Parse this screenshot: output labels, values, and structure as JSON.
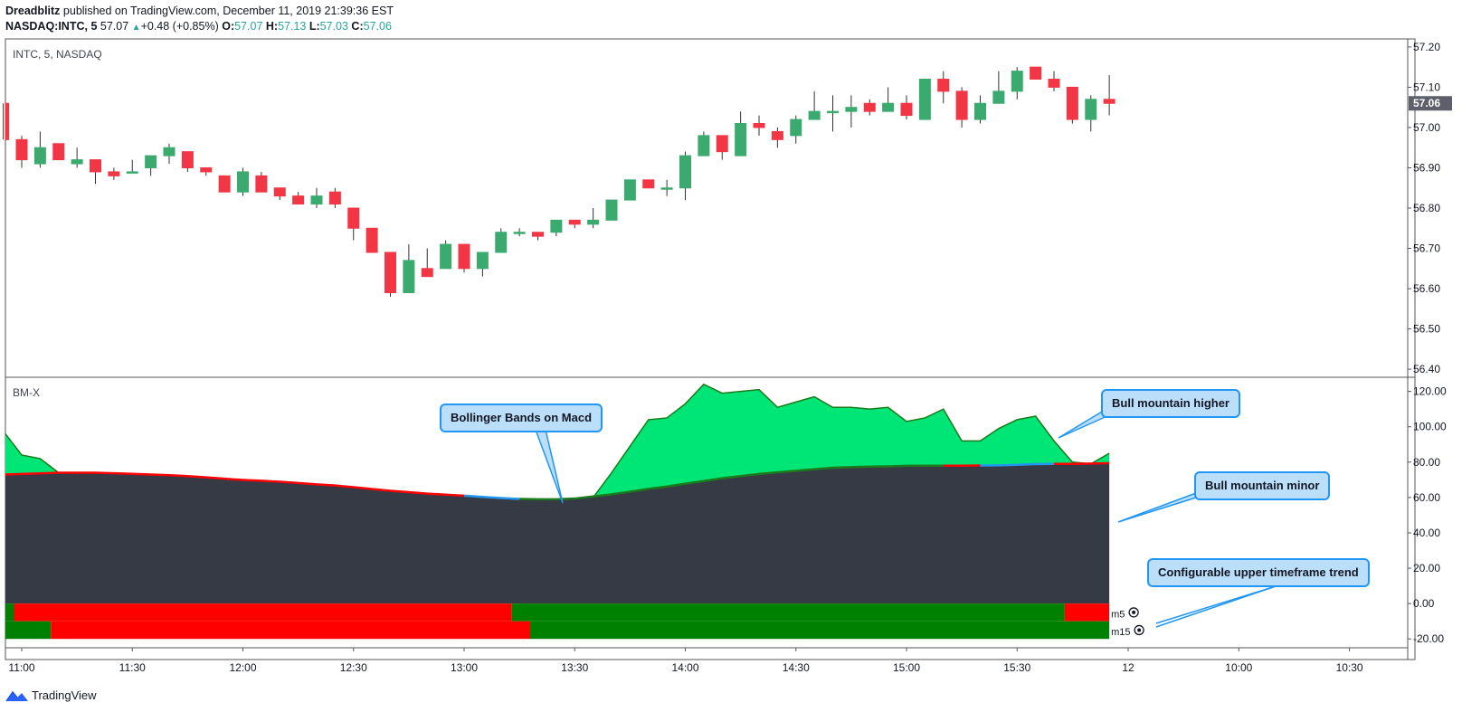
{
  "header": {
    "author": "Dreadblitz",
    "published": "published on TradingView.com, December 11, 2019 21:39:36 EST",
    "symbol": "NASDAQ:INTC, 5",
    "last": "57.07",
    "change_arrow": "▲",
    "change": "+0.48 (+0.85%)",
    "o_label": "O:",
    "o": "57.07",
    "h_label": "H:",
    "h": "57.13",
    "l_label": "L:",
    "l": "57.03",
    "c_label": "C:",
    "c": "57.06"
  },
  "panes": {
    "price_label": "INTC, 5, NASDAQ",
    "indicator_label": "BM-X",
    "current_price": "57.06"
  },
  "callouts": {
    "bollinger": "Bollinger Bands on Macd",
    "higher": "Bull mountain higher",
    "minor": "Bull mountain minor",
    "timeframe": "Configurable upper timeframe trend"
  },
  "row_labels": {
    "m5": "m5",
    "m15": "m15"
  },
  "footer": {
    "brand": "TradingView",
    "logo_icon": "tradingview-logo-icon"
  },
  "colors": {
    "up": "#3aaa6f",
    "down": "#f23645",
    "wick": "#333333",
    "mountain_fill": "#00e676",
    "mountain_line": "#1b7a1b",
    "base_fill": "#363a45",
    "signal_red": "#ff0000",
    "signal_blue": "#2196f3",
    "trend_green": "#008000",
    "trend_red": "#ff0000",
    "callout_bg": "#bbdefb",
    "callout_border": "#2196f3"
  },
  "chart_data": [
    {
      "type": "candlestick",
      "title": "INTC, 5, NASDAQ",
      "ylim": [
        56.38,
        57.22
      ],
      "y_ticks": [
        "57.20",
        "57.10",
        "57.00",
        "56.90",
        "56.80",
        "56.70",
        "56.60",
        "56.50",
        "56.40"
      ],
      "x_ticks": [
        "11:00",
        "11:30",
        "12:00",
        "12:30",
        "13:00",
        "13:30",
        "14:00",
        "14:30",
        "15:00",
        "15:30",
        "12",
        "10:00",
        "10:30"
      ],
      "time_start": "10:55",
      "bar_minutes": 5,
      "ohlc": [
        [
          57.06,
          57.06,
          56.97,
          56.97
        ],
        [
          56.97,
          56.98,
          56.9,
          56.92
        ],
        [
          56.91,
          56.99,
          56.9,
          56.95
        ],
        [
          56.96,
          56.96,
          56.92,
          56.92
        ],
        [
          56.91,
          56.95,
          56.9,
          56.92
        ],
        [
          56.92,
          56.92,
          56.86,
          56.89
        ],
        [
          56.89,
          56.9,
          56.87,
          56.88
        ],
        [
          56.89,
          56.92,
          56.89,
          56.89
        ],
        [
          56.9,
          56.93,
          56.88,
          56.93
        ],
        [
          56.93,
          56.96,
          56.91,
          56.95
        ],
        [
          56.94,
          56.94,
          56.89,
          56.9
        ],
        [
          56.9,
          56.9,
          56.88,
          56.89
        ],
        [
          56.88,
          56.88,
          56.84,
          56.84
        ],
        [
          56.84,
          56.9,
          56.83,
          56.89
        ],
        [
          56.88,
          56.89,
          56.84,
          56.84
        ],
        [
          56.85,
          56.85,
          56.82,
          56.83
        ],
        [
          56.83,
          56.84,
          56.81,
          56.81
        ],
        [
          56.81,
          56.85,
          56.8,
          56.83
        ],
        [
          56.84,
          56.85,
          56.8,
          56.81
        ],
        [
          56.8,
          56.8,
          56.72,
          56.75
        ],
        [
          56.75,
          56.75,
          56.69,
          56.69
        ],
        [
          56.69,
          56.69,
          56.58,
          56.59
        ],
        [
          56.59,
          56.71,
          56.59,
          56.67
        ],
        [
          56.65,
          56.7,
          56.63,
          56.63
        ],
        [
          56.65,
          56.72,
          56.65,
          56.71
        ],
        [
          56.71,
          56.71,
          56.64,
          56.65
        ],
        [
          56.65,
          56.69,
          56.63,
          56.69
        ],
        [
          56.69,
          56.75,
          56.69,
          56.74
        ],
        [
          56.74,
          56.75,
          56.73,
          56.74
        ],
        [
          56.74,
          56.74,
          56.72,
          56.73
        ],
        [
          56.74,
          56.77,
          56.73,
          56.77
        ],
        [
          56.77,
          56.77,
          56.75,
          56.76
        ],
        [
          56.76,
          56.8,
          56.75,
          56.77
        ],
        [
          56.77,
          56.82,
          56.77,
          56.82
        ],
        [
          56.82,
          56.87,
          56.82,
          56.87
        ],
        [
          56.87,
          56.87,
          56.85,
          56.85
        ],
        [
          56.85,
          56.87,
          56.83,
          56.85
        ],
        [
          56.85,
          56.94,
          56.82,
          56.93
        ],
        [
          56.93,
          56.99,
          56.93,
          56.98
        ],
        [
          56.98,
          56.98,
          56.92,
          56.94
        ],
        [
          56.93,
          57.04,
          56.93,
          57.01
        ],
        [
          57.01,
          57.03,
          56.98,
          57.0
        ],
        [
          56.99,
          57.0,
          56.95,
          56.97
        ],
        [
          56.98,
          57.03,
          56.96,
          57.02
        ],
        [
          57.02,
          57.09,
          57.02,
          57.04
        ],
        [
          57.04,
          57.08,
          56.99,
          57.04
        ],
        [
          57.04,
          57.08,
          57.0,
          57.05
        ],
        [
          57.06,
          57.07,
          57.03,
          57.04
        ],
        [
          57.04,
          57.1,
          57.04,
          57.06
        ],
        [
          57.06,
          57.08,
          57.02,
          57.03
        ],
        [
          57.02,
          57.12,
          57.02,
          57.12
        ],
        [
          57.12,
          57.14,
          57.06,
          57.09
        ],
        [
          57.09,
          57.1,
          57.0,
          57.02
        ],
        [
          57.02,
          57.08,
          57.01,
          57.06
        ],
        [
          57.06,
          57.14,
          57.06,
          57.09
        ],
        [
          57.09,
          57.15,
          57.07,
          57.14
        ],
        [
          57.15,
          57.15,
          57.12,
          57.12
        ],
        [
          57.12,
          57.14,
          57.09,
          57.1
        ],
        [
          57.1,
          57.1,
          57.01,
          57.02
        ],
        [
          57.02,
          57.08,
          56.99,
          57.07
        ],
        [
          57.07,
          57.13,
          57.03,
          57.06
        ]
      ]
    },
    {
      "type": "area",
      "title": "BM-X",
      "ylim": [
        -25,
        128
      ],
      "y_ticks": [
        "120.00",
        "100.00",
        "80.00",
        "60.00",
        "40.00",
        "20.00",
        "0.00",
        "-20.00"
      ],
      "series": [
        {
          "x": [
            "10:55",
            "11:00",
            "11:05",
            "11:10",
            "11:15",
            "11:20",
            "11:25",
            "11:30",
            "11:35",
            "11:40",
            "11:45",
            "11:50",
            "11:55",
            "12:00",
            "12:05",
            "12:10",
            "12:15",
            "12:20",
            "12:25",
            "12:30",
            "12:35",
            "12:40",
            "12:45",
            "12:50",
            "12:55",
            "13:00",
            "13:05",
            "13:10",
            "13:15",
            "13:20",
            "13:25",
            "13:30",
            "13:35",
            "13:40",
            "13:45",
            "13:50",
            "13:55",
            "14:00",
            "14:05",
            "14:10",
            "14:15",
            "14:20",
            "14:25",
            "14:30",
            "14:35",
            "14:40",
            "14:45",
            "14:50",
            "14:55",
            "15:00",
            "15:05",
            "15:10",
            "15:15",
            "15:20",
            "15:25",
            "15:30",
            "15:35",
            "15:40",
            "15:45",
            "15:50",
            "15:55"
          ],
          "values": [
            96,
            84,
            82,
            74,
            72,
            70,
            69,
            69,
            68,
            67,
            65,
            64,
            63,
            62,
            61,
            60,
            59,
            58,
            58,
            57,
            57,
            56,
            55,
            54,
            53,
            53,
            52,
            51,
            50,
            50,
            50,
            51,
            60,
            74,
            89,
            104,
            105,
            113,
            124,
            119,
            120,
            121,
            111,
            114,
            117,
            111,
            111,
            110,
            111,
            103,
            105,
            110,
            92,
            92,
            99,
            104,
            106,
            92,
            80,
            79,
            85
          ]
        },
        {
          "values": [
            73,
            73.3,
            73.6,
            74,
            74,
            74,
            73.7,
            73.4,
            73,
            72.6,
            72.1,
            71.4,
            70.6,
            69.9,
            69.5,
            68.9,
            68.2,
            67.4,
            66.8,
            65.8,
            64.8,
            63.8,
            63,
            62.2,
            61.6,
            61,
            60.3,
            59.7,
            59.2,
            59,
            59,
            59.4,
            60.6,
            61.8,
            63.3,
            64.9,
            66.2,
            67.8,
            69.3,
            70.9,
            72.1,
            73.3,
            74.2,
            75.1,
            76,
            76.8,
            77.2,
            77.5,
            77.6,
            77.9,
            78,
            78,
            78,
            78.1,
            78.2,
            78.5,
            78.9,
            79,
            79,
            79.2,
            79.4
          ],
          "color_segments": [
            "red",
            "red",
            "red",
            "red",
            "red",
            "red",
            "red",
            "red",
            "red",
            "red",
            "red",
            "red",
            "red",
            "red",
            "red",
            "red",
            "red",
            "red",
            "red",
            "red",
            "red",
            "red",
            "red",
            "red",
            "red",
            "blue",
            "blue",
            "blue",
            "green",
            "green",
            "green",
            "green",
            "green",
            "green",
            "green",
            "green",
            "green",
            "green",
            "green",
            "green",
            "green",
            "green",
            "green",
            "green",
            "green",
            "green",
            "green",
            "green",
            "green",
            "green",
            "green",
            "red",
            "red",
            "blue",
            "blue",
            "blue",
            "blue",
            "red",
            "red",
            "red"
          ]
        }
      ],
      "trend_rows": [
        {
          "name": "m5",
          "segments": [
            {
              "from": "10:55",
              "to": "11:00",
              "state": "bull"
            },
            {
              "from": "11:00",
              "to": "13:15",
              "state": "bear"
            },
            {
              "from": "13:15",
              "to": "15:45",
              "state": "bull"
            },
            {
              "from": "15:45",
              "to": "16:00",
              "state": "bear"
            }
          ]
        },
        {
          "name": "m15",
          "segments": [
            {
              "from": "10:55",
              "to": "11:10",
              "state": "bull"
            },
            {
              "from": "11:10",
              "to": "13:20",
              "state": "bear"
            },
            {
              "from": "13:20",
              "to": "16:00",
              "state": "bull"
            }
          ]
        }
      ]
    }
  ]
}
